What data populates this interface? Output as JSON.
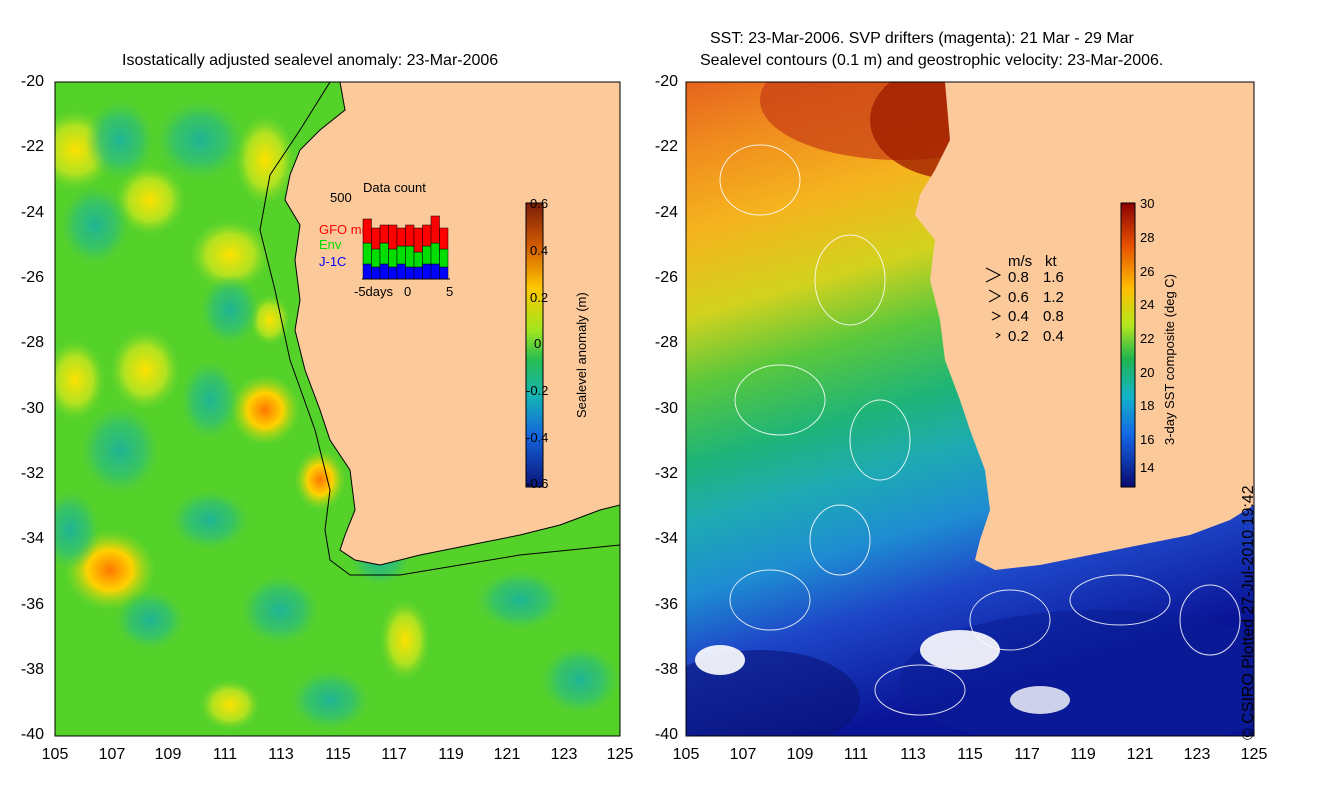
{
  "left_map": {
    "title": "Isostatically adjusted sealevel anomaly: 23-Mar-2006",
    "y_ticks": [
      "-20",
      "-22",
      "-24",
      "-26",
      "-28",
      "-30",
      "-32",
      "-34",
      "-36",
      "-38",
      "-40"
    ],
    "x_ticks": [
      "105",
      "107",
      "109",
      "111",
      "113",
      "115",
      "117",
      "119",
      "121",
      "123",
      "125"
    ],
    "colorbar": {
      "label": "Sealevel anomaly (m)",
      "ticks": [
        "0.6",
        "0.4",
        "0.2",
        "0",
        "-0.2",
        "-0.4",
        "-0.6"
      ]
    },
    "data_count": {
      "title": "Data count",
      "max_label": "500",
      "legend": [
        "GFO mm",
        "Env",
        "J-1C"
      ],
      "legend_colors": [
        "#ff0000",
        "#00dd00",
        "#0000ff"
      ],
      "x_labels": [
        "-5days",
        "0",
        "5"
      ],
      "bars": [
        {
          "gfo": 0.4,
          "env": 0.35,
          "j1": 0.25
        },
        {
          "gfo": 0.35,
          "env": 0.3,
          "j1": 0.2
        },
        {
          "gfo": 0.3,
          "env": 0.35,
          "j1": 0.25
        },
        {
          "gfo": 0.4,
          "env": 0.3,
          "j1": 0.2
        },
        {
          "gfo": 0.3,
          "env": 0.3,
          "j1": 0.25
        },
        {
          "gfo": 0.35,
          "env": 0.35,
          "j1": 0.2
        },
        {
          "gfo": 0.4,
          "env": 0.25,
          "j1": 0.2
        },
        {
          "gfo": 0.35,
          "env": 0.3,
          "j1": 0.25
        },
        {
          "gfo": 0.45,
          "env": 0.35,
          "j1": 0.25
        },
        {
          "gfo": 0.35,
          "env": 0.3,
          "j1": 0.2
        }
      ]
    }
  },
  "right_map": {
    "title_line1": "SST: 23-Mar-2006. SVP drifters (magenta): 21 Mar - 29 Mar",
    "title_line2": "Sealevel contours (0.1 m) and geostrophic velocity: 23-Mar-2006.",
    "y_ticks": [
      "-20",
      "-22",
      "-24",
      "-26",
      "-28",
      "-30",
      "-32",
      "-34",
      "-36",
      "-38",
      "-40"
    ],
    "x_ticks": [
      "105",
      "107",
      "109",
      "111",
      "113",
      "115",
      "117",
      "119",
      "121",
      "123",
      "125"
    ],
    "colorbar": {
      "label": "3-day SST composite (deg C)",
      "ticks": [
        "30",
        "28",
        "26",
        "24",
        "22",
        "20",
        "18",
        "16",
        "14"
      ]
    },
    "velocity_legend": {
      "header_ms": "m/s",
      "header_kt": "kt",
      "rows": [
        {
          "ms": "0.8",
          "kt": "1.6"
        },
        {
          "ms": "0.6",
          "kt": "1.2"
        },
        {
          "ms": "0.4",
          "kt": "0.8"
        },
        {
          "ms": "0.2",
          "kt": "0.4"
        }
      ]
    }
  },
  "copyright": "© CSIRO Plotted 27-Jul-2010 19:42",
  "colors": {
    "land": "#fcc99b",
    "anomaly_bg": "#55d22a",
    "warm_sst": "#c81e00",
    "cold_sst": "#0a1e96"
  }
}
